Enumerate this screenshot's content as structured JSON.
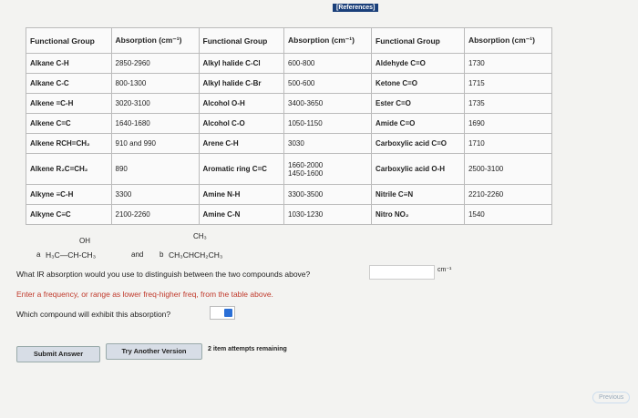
{
  "references": "[References]",
  "table": {
    "header": [
      "Functional Group",
      "Absorption (cm⁻¹)",
      "Functional Group",
      "Absorption (cm⁻¹)",
      "Functional Group",
      "Absorption (cm⁻¹)"
    ],
    "rows": [
      [
        "Alkane C-H",
        "2850-2960",
        "Alkyl halide C-Cl",
        "600-800",
        "Aldehyde C=O",
        "1730"
      ],
      [
        "Alkane C-C",
        "800-1300",
        "Alkyl halide C-Br",
        "500-600",
        "Ketone C=O",
        "1715"
      ],
      [
        "Alkene =C-H",
        "3020-3100",
        "Alcohol O-H",
        "3400-3650",
        "Ester C=O",
        "1735"
      ],
      [
        "Alkene C=C",
        "1640-1680",
        "Alcohol C-O",
        "1050-1150",
        "Amide C=O",
        "1690"
      ],
      [
        "Alkene RCH=CH₂",
        "910 and 990",
        "Arene C-H",
        "3030",
        "Carboxylic acid C=O",
        "1710"
      ],
      [
        "Alkene R₂C=CH₂",
        "890",
        "Aromatic ring C=C",
        [
          "1660-2000",
          "1450-1600"
        ],
        "Carboxylic acid O-H",
        "2500-3100"
      ],
      [
        "Alkyne ≡C-H",
        "3300",
        "Amine N-H",
        "3300-3500",
        "Nitrile C≡N",
        "2210-2260"
      ],
      [
        "Alkyne C≡C",
        "2100-2260",
        "Amine C-N",
        "1030-1230",
        "Nitro NO₂",
        "1540"
      ]
    ]
  },
  "compounds": {
    "a": {
      "label": "a",
      "top": "OH",
      "main": "H₃C—CH-CH₃"
    },
    "and": "and",
    "b": {
      "label": "b",
      "top": "CH₃",
      "main": "CH₃CHCH₂CH₃"
    }
  },
  "question": "What IR absorption would you use to distinguish between the two compounds above?",
  "unit": "cm⁻¹",
  "instruction": "Enter a frequency, or range as lower freq-higher freq, from the table above.",
  "which": "Which compound will exhibit this absorption?",
  "buttons": {
    "submit": "Submit Answer",
    "try": "Try Another Version"
  },
  "attempts": "2 item attempts remaining",
  "previous": "Previous"
}
